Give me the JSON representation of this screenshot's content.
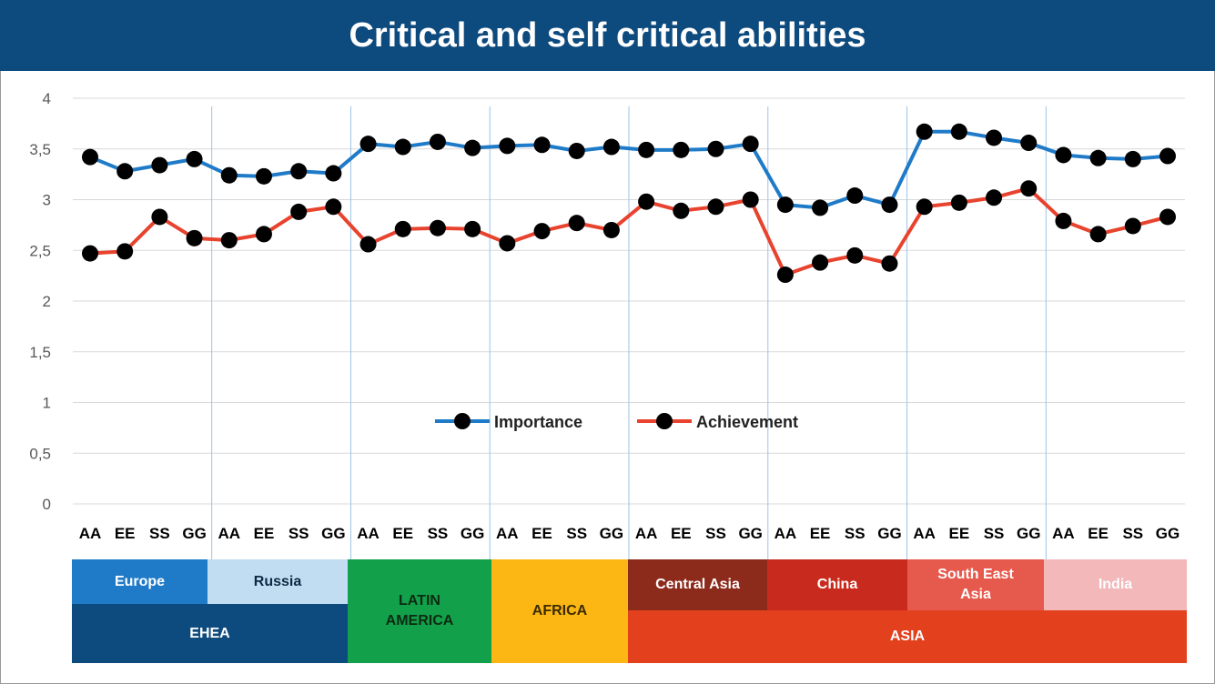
{
  "title": "Critical and self critical abilities",
  "chart_data": {
    "type": "line",
    "title": "Critical and self critical abilities",
    "categories": [
      "AA",
      "EE",
      "SS",
      "GG",
      "AA",
      "EE",
      "SS",
      "GG",
      "AA",
      "EE",
      "SS",
      "GG",
      "AA",
      "EE",
      "SS",
      "GG",
      "AA",
      "EE",
      "SS",
      "GG",
      "AA",
      "EE",
      "SS",
      "GG",
      "AA",
      "EE",
      "SS",
      "GG",
      "AA",
      "EE",
      "SS",
      "GG"
    ],
    "ylim": [
      0,
      4
    ],
    "yticks": [
      "0",
      "0,5",
      "1",
      "1,5",
      "2",
      "2,5",
      "3",
      "3,5",
      "4"
    ],
    "ytick_values": [
      0,
      0.5,
      1,
      1.5,
      2,
      2.5,
      3,
      3.5,
      4
    ],
    "grid": true,
    "legend_position": "center",
    "series": [
      {
        "name": "Importance",
        "color": "#1f7bc8",
        "values": [
          3.42,
          3.28,
          3.34,
          3.4,
          3.24,
          3.23,
          3.28,
          3.26,
          3.55,
          3.52,
          3.57,
          3.51,
          3.53,
          3.54,
          3.48,
          3.52,
          3.49,
          3.49,
          3.5,
          3.55,
          2.95,
          2.92,
          3.04,
          2.95,
          3.67,
          3.67,
          3.61,
          3.56,
          3.44,
          3.41,
          3.4,
          3.43
        ]
      },
      {
        "name": "Achievement",
        "color": "#e8432e",
        "values": [
          2.47,
          2.49,
          2.83,
          2.62,
          2.6,
          2.66,
          2.88,
          2.93,
          2.56,
          2.71,
          2.72,
          2.71,
          2.57,
          2.69,
          2.77,
          2.7,
          2.98,
          2.89,
          2.93,
          3.0,
          2.26,
          2.38,
          2.45,
          2.37,
          2.93,
          2.97,
          3.02,
          3.11,
          2.79,
          2.66,
          2.74,
          2.83
        ]
      }
    ]
  },
  "regions": {
    "countries": [
      {
        "label": "Europe",
        "bg": "#1f7bc8",
        "fg": "#ffffff"
      },
      {
        "label": "Russia",
        "bg": "#c0ddf1",
        "fg": "#0d2a45"
      },
      {
        "label": "LATIN AMERICA",
        "bg": "#12a14a",
        "fg": "#0c2a12"
      },
      {
        "label": "AFRICA",
        "bg": "#fcb714",
        "fg": "#3a2a00"
      },
      {
        "label": "Central Asia",
        "bg": "#8c2a1c",
        "fg": "#ffffff"
      },
      {
        "label": "China",
        "bg": "#c92a1e",
        "fg": "#ffffff"
      },
      {
        "label": "South East Asia",
        "bg": "#e65a4e",
        "fg": "#ffffff"
      },
      {
        "label": "India",
        "bg": "#f2b8ba",
        "fg": "#ffffff"
      }
    ],
    "groups": [
      {
        "label": "EHEA",
        "bg": "#0d4a7e",
        "fg": "#ffffff"
      },
      {
        "label": "ASIA",
        "bg": "#e3401e",
        "fg": "#ffffff"
      }
    ]
  }
}
